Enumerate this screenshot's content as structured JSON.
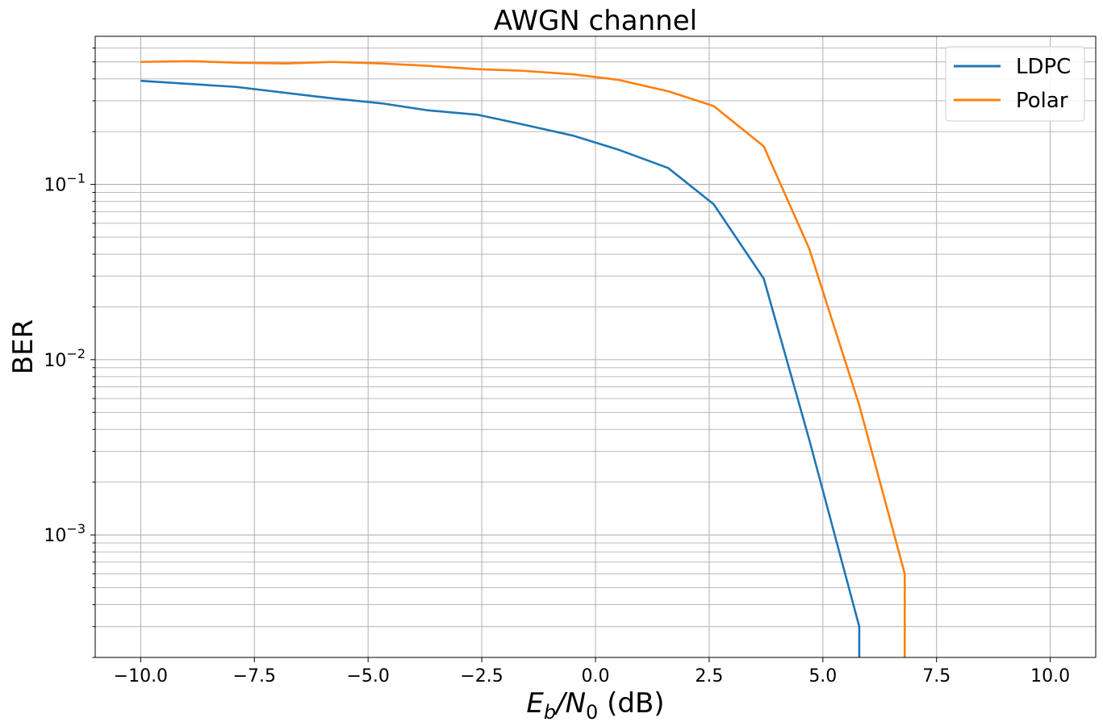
{
  "chart_data": {
    "type": "line",
    "title": "AWGN channel",
    "xlabel": {
      "main": "E",
      "sub_b": "b",
      "slash": "/N",
      "sub_0": "0",
      "unit": " (dB)"
    },
    "ylabel": "BER",
    "y_scale": "log",
    "grid": "major and minor",
    "legend_position": "upper right",
    "xlim": [
      -11.0,
      11.0
    ],
    "ylim": [
      0.0002,
      0.7
    ],
    "x_ticks": [
      -10.0,
      -7.5,
      -5.0,
      -2.5,
      0.0,
      2.5,
      5.0,
      7.5,
      10.0
    ],
    "x_tick_labels": [
      "−10.0",
      "−7.5",
      "−5.0",
      "−2.5",
      "0.0",
      "2.5",
      "5.0",
      "7.5",
      "10.0"
    ],
    "y_ticks": [
      {
        "value": 0.1,
        "base": "10",
        "exp": "−1"
      },
      {
        "value": 0.01,
        "base": "10",
        "exp": "−2"
      },
      {
        "value": 0.001,
        "base": "10",
        "exp": "−3"
      }
    ],
    "series": [
      {
        "name": "LDPC",
        "color": "#1f77b4",
        "points": [
          [
            -10.0,
            0.39
          ],
          [
            -7.9,
            0.36
          ],
          [
            -5.8,
            0.31
          ],
          [
            -4.7,
            0.29
          ],
          [
            -3.7,
            0.265
          ],
          [
            -2.6,
            0.25
          ],
          [
            -1.6,
            0.22
          ],
          [
            -0.5,
            0.19
          ],
          [
            0.5,
            0.158
          ],
          [
            1.6,
            0.124
          ],
          [
            2.6,
            0.077
          ],
          [
            3.7,
            0.029
          ],
          [
            4.7,
            0.0035
          ],
          [
            5.8,
            0.0003
          ],
          [
            5.8,
            0.0002
          ]
        ]
      },
      {
        "name": "Polar",
        "color": "#ff7f0e",
        "points": [
          [
            -10.0,
            0.5
          ],
          [
            -8.9,
            0.505
          ],
          [
            -7.9,
            0.495
          ],
          [
            -6.8,
            0.49
          ],
          [
            -5.8,
            0.5
          ],
          [
            -4.7,
            0.49
          ],
          [
            -3.7,
            0.475
          ],
          [
            -2.6,
            0.455
          ],
          [
            -1.6,
            0.445
          ],
          [
            -0.5,
            0.425
          ],
          [
            0.5,
            0.395
          ],
          [
            1.6,
            0.34
          ],
          [
            2.6,
            0.28
          ],
          [
            3.7,
            0.165
          ],
          [
            4.7,
            0.043
          ],
          [
            5.8,
            0.0055
          ],
          [
            6.8,
            0.0006
          ],
          [
            6.8,
            0.0002
          ]
        ]
      }
    ]
  }
}
